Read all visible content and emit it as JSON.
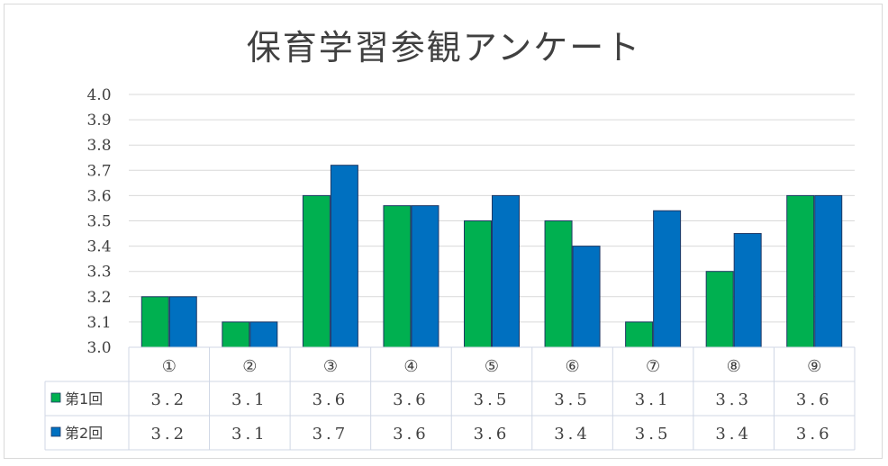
{
  "chart_data": {
    "type": "bar",
    "title": "保育学習参観アンケート",
    "categories": [
      "①",
      "②",
      "③",
      "④",
      "⑤",
      "⑥",
      "⑦",
      "⑧",
      "⑨"
    ],
    "series": [
      {
        "name": "第1回",
        "color": "#00b050",
        "values": [
          3.2,
          3.1,
          3.6,
          3.56,
          3.5,
          3.5,
          3.1,
          3.3,
          3.6
        ],
        "labels": [
          "3.2",
          "3.1",
          "3.6",
          "3.6",
          "3.5",
          "3.5",
          "3.1",
          "3.3",
          "3.6"
        ]
      },
      {
        "name": "第2回",
        "color": "#0070c0",
        "values": [
          3.2,
          3.1,
          3.72,
          3.56,
          3.6,
          3.4,
          3.54,
          3.45,
          3.6
        ],
        "labels": [
          "3.2",
          "3.1",
          "3.7",
          "3.6",
          "3.6",
          "3.4",
          "3.5",
          "3.4",
          "3.6"
        ]
      }
    ],
    "yticks": [
      "3.0",
      "3.1",
      "3.2",
      "3.3",
      "3.4",
      "3.5",
      "3.6",
      "3.7",
      "3.8",
      "3.9",
      "4.0"
    ],
    "ylim": [
      3.0,
      4.0
    ],
    "grid": true,
    "legend": "data-table"
  }
}
